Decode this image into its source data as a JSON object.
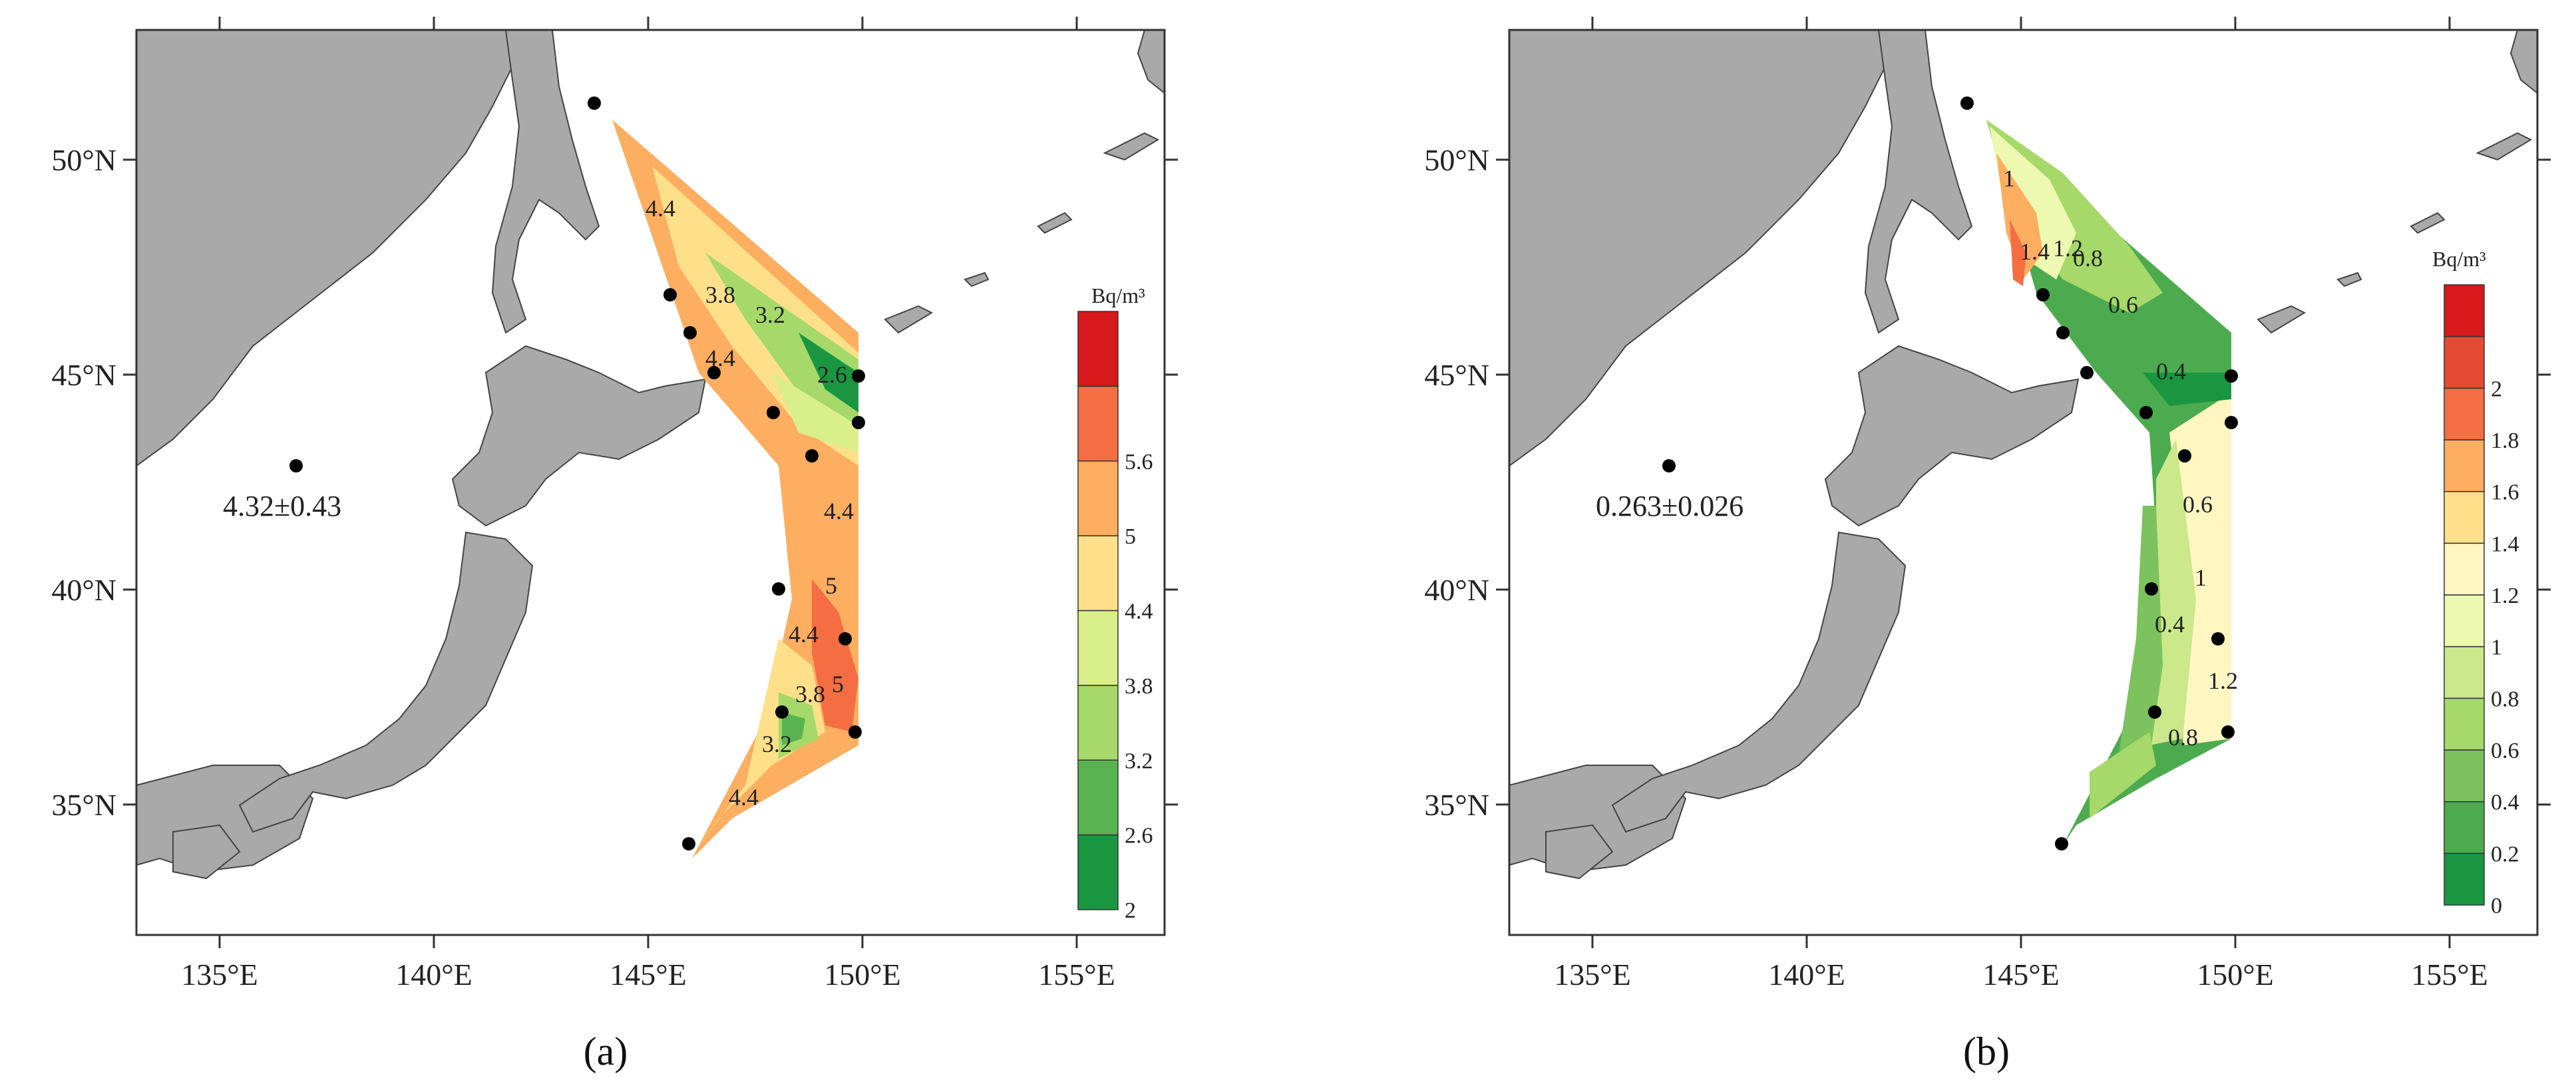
{
  "panels": [
    {
      "id": "a",
      "label": "(a)",
      "station_value": "4.32±0.43",
      "colorbar": {
        "unit": "Bq/m³",
        "ticks": [
          "2",
          "2.6",
          "3.2",
          "3.8",
          "4.4",
          "5",
          "5.6"
        ],
        "colors": [
          "#1a9641",
          "#5ab351",
          "#a6d96a",
          "#d9ef8b",
          "#fee08b",
          "#fdae61",
          "#f46d43",
          "#d7191c"
        ]
      },
      "contour_labels": [
        "4.4",
        "3.8",
        "3.2",
        "2.6",
        "4.4",
        "4.4",
        "5",
        "4.4",
        "3.8",
        "5",
        "3.2",
        "4.4"
      ]
    },
    {
      "id": "b",
      "label": "(b)",
      "station_value": "0.263±0.026",
      "colorbar": {
        "unit": "Bq/m³",
        "ticks": [
          "0",
          "0.2",
          "0.4",
          "0.6",
          "0.8",
          "1",
          "1.2",
          "1.4",
          "1.6",
          "1.8",
          "2"
        ],
        "colors": [
          "#1a9641",
          "#4dab4f",
          "#7cc25e",
          "#a6d96a",
          "#cbe88a",
          "#edf8b1",
          "#fff6c2",
          "#fee08b",
          "#fdae61",
          "#f46d43",
          "#e34a33",
          "#d7191c"
        ]
      },
      "contour_labels": [
        "1",
        "1.4",
        "1.2",
        "0.8",
        "0.6",
        "0.4",
        "0.6",
        "1",
        "0.4",
        "1.2",
        "0.8"
      ]
    }
  ],
  "axes": {
    "x_ticks": [
      "135°E",
      "140°E",
      "145°E",
      "150°E",
      "155°E"
    ],
    "y_ticks": [
      "50°N",
      "45°N",
      "40°N",
      "35°N"
    ]
  }
}
